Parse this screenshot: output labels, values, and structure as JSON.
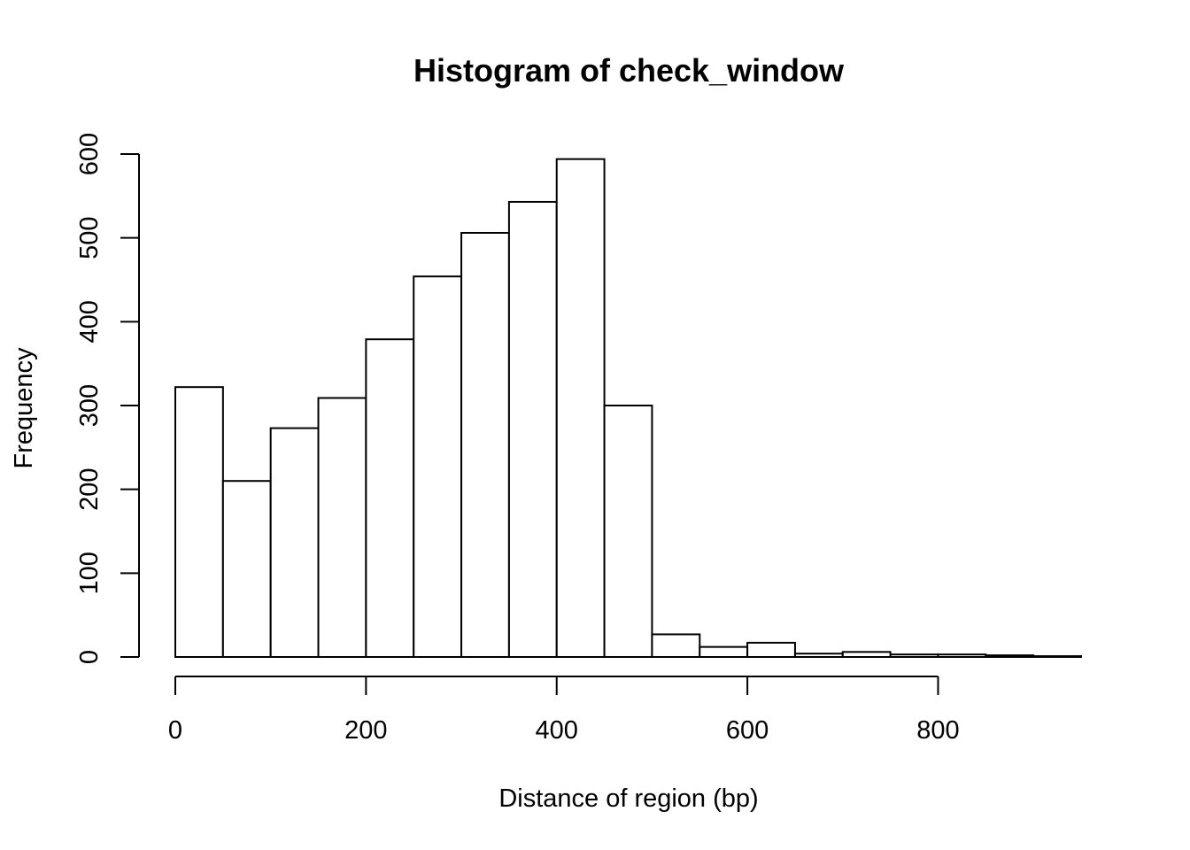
{
  "chart_data": {
    "type": "bar",
    "title": "Histogram of check_window",
    "xlabel": "Distance of region (bp)",
    "ylabel": "Frequency",
    "bin_edges": [
      0,
      50,
      100,
      150,
      200,
      250,
      300,
      350,
      400,
      450,
      500,
      550,
      600,
      650,
      700,
      750,
      800,
      850,
      900,
      950
    ],
    "values": [
      322,
      210,
      273,
      309,
      379,
      454,
      506,
      543,
      594,
      300,
      27,
      12,
      17,
      4,
      6,
      3,
      3,
      2,
      1
    ],
    "xlim": [
      0,
      950
    ],
    "ylim": [
      0,
      600
    ],
    "x_ticks": [
      0,
      200,
      400,
      600,
      800
    ],
    "y_ticks": [
      0,
      100,
      200,
      300,
      400,
      500,
      600
    ],
    "grid": false,
    "legend": "none"
  }
}
